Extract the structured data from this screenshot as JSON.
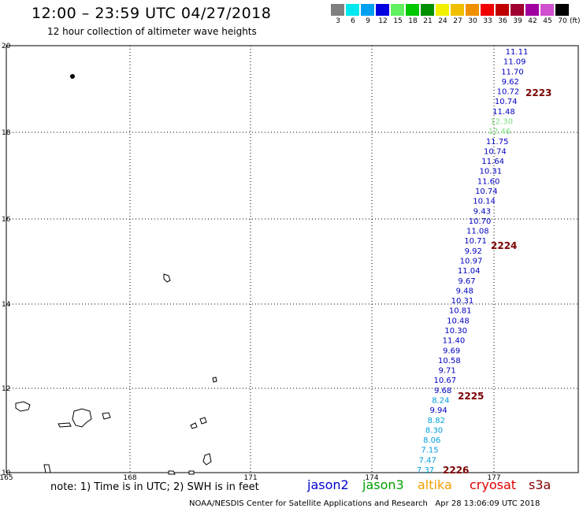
{
  "header": {
    "title": "12:00 – 23:59 UTC 04/27/2018",
    "subtitle": "12 hour collection of altimeter wave heights"
  },
  "color_scale": {
    "unit": "(ft)",
    "bins": [
      {
        "label": "3",
        "color": "#808080"
      },
      {
        "label": "6",
        "color": "#00e8f0"
      },
      {
        "label": "9",
        "color": "#00a0f0"
      },
      {
        "label": "12",
        "color": "#0000e0"
      },
      {
        "label": "15",
        "color": "#60f060"
      },
      {
        "label": "18",
        "color": "#00c800"
      },
      {
        "label": "21",
        "color": "#009000"
      },
      {
        "label": "24",
        "color": "#f0f000"
      },
      {
        "label": "27",
        "color": "#f0c000"
      },
      {
        "label": "30",
        "color": "#f09000"
      },
      {
        "label": "33",
        "color": "#f00000"
      },
      {
        "label": "36",
        "color": "#c00000"
      },
      {
        "label": "39",
        "color": "#a00030"
      },
      {
        "label": "42",
        "color": "#a000a0"
      },
      {
        "label": "45",
        "color": "#d050d0"
      },
      {
        "label": "70",
        "color": "#000000"
      }
    ]
  },
  "map": {
    "lat_labels": [
      "20",
      "18",
      "16",
      "14",
      "12",
      "10"
    ],
    "lon_labels": [
      "165",
      "168",
      "171",
      "174",
      "177"
    ],
    "swh_observations": [
      {
        "value": "11.11",
        "color": "#0000c0"
      },
      {
        "value": "11.09",
        "color": "#0000c0"
      },
      {
        "value": "11.70",
        "color": "#0000c0"
      },
      {
        "value": "9.62",
        "color": "#0000c0"
      },
      {
        "value": "10.72",
        "color": "#0000c0"
      },
      {
        "value": "10.74",
        "color": "#0000c0"
      },
      {
        "value": "11.48",
        "color": "#0000c0"
      },
      {
        "value": "12.30",
        "color": "#7ee07e"
      },
      {
        "value": "12.46",
        "color": "#7ee07e"
      },
      {
        "value": "11.75",
        "color": "#0000c0"
      },
      {
        "value": "10.74",
        "color": "#0000c0"
      },
      {
        "value": "11.64",
        "color": "#0000c0"
      },
      {
        "value": "10.31",
        "color": "#0000c0"
      },
      {
        "value": "11.60",
        "color": "#0000c0"
      },
      {
        "value": "10.74",
        "color": "#0000c0"
      },
      {
        "value": "10.14",
        "color": "#0000c0"
      },
      {
        "value": "9.43",
        "color": "#0000c0"
      },
      {
        "value": "10.70",
        "color": "#0000c0"
      },
      {
        "value": "11.08",
        "color": "#0000c0"
      },
      {
        "value": "10.71",
        "color": "#0000c0"
      },
      {
        "value": "9.92",
        "color": "#0000c0"
      },
      {
        "value": "10.97",
        "color": "#0000c0"
      },
      {
        "value": "11.04",
        "color": "#0000c0"
      },
      {
        "value": "9.67",
        "color": "#0000c0"
      },
      {
        "value": "9.48",
        "color": "#0000c0"
      },
      {
        "value": "10.31",
        "color": "#0000c0"
      },
      {
        "value": "10.81",
        "color": "#0000c0"
      },
      {
        "value": "10.48",
        "color": "#0000c0"
      },
      {
        "value": "10.30",
        "color": "#0000c0"
      },
      {
        "value": "11.40",
        "color": "#0000c0"
      },
      {
        "value": "9.69",
        "color": "#0000c0"
      },
      {
        "value": "10.58",
        "color": "#0000c0"
      },
      {
        "value": "9.71",
        "color": "#0000c0"
      },
      {
        "value": "10.67",
        "color": "#0000c0"
      },
      {
        "value": "9.68",
        "color": "#0000c0"
      },
      {
        "value": "8.24",
        "color": "#00a0e0"
      },
      {
        "value": "9.94",
        "color": "#0000c0"
      },
      {
        "value": "8.82",
        "color": "#00a0e0"
      },
      {
        "value": "8.30",
        "color": "#00a0e0"
      },
      {
        "value": "8.06",
        "color": "#00a0e0"
      },
      {
        "value": "7.15",
        "color": "#00a0e0"
      },
      {
        "value": "7.47",
        "color": "#00a0e0"
      },
      {
        "value": "7.37",
        "color": "#00a0e0"
      }
    ],
    "track_labels": [
      "2223",
      "2224",
      "2225",
      "2226"
    ]
  },
  "footer": {
    "note": "note: 1) Time is in UTC; 2) SWH is in feet",
    "legend": [
      {
        "label": "jason2",
        "color": "#0000d0"
      },
      {
        "label": "jason3",
        "color": "#00a000"
      },
      {
        "label": "altika",
        "color": "#f0a000"
      },
      {
        "label": "cryosat",
        "color": "#e00000"
      },
      {
        "label": "s3a",
        "color": "#800000"
      }
    ],
    "credit": "NOAA/NESDIS Center for Satellite Applications and Research",
    "timestamp": "Apr 28 13:06:09 UTC 2018"
  }
}
